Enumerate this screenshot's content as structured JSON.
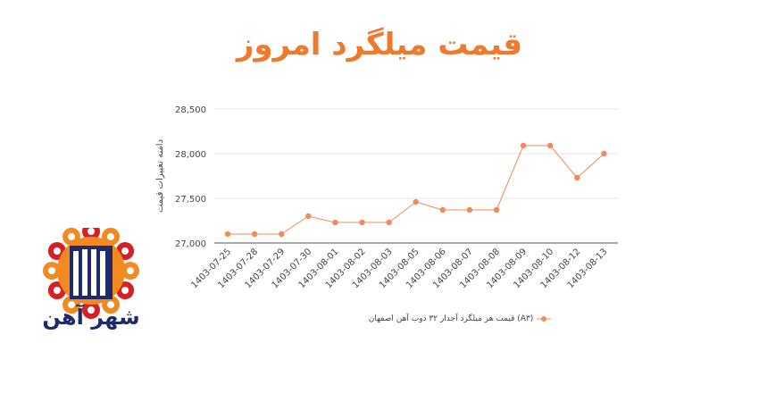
{
  "page": {
    "title": "قیمت میلگرد امروز"
  },
  "colors": {
    "accent": "#ee7a2e",
    "series": "#f08a5d",
    "grid": "#e6e6e6",
    "axis": "#555555",
    "text": "#444444",
    "logo_navy": "#1f2a6b",
    "logo_red": "#d62027",
    "logo_orange": "#f18a21"
  },
  "logo": {
    "icon": "shahr-ahan-logo",
    "text": "شهر آهن"
  },
  "chart_data": {
    "type": "line",
    "title": "",
    "xlabel": "",
    "ylabel": "دامنه تغییرات قیمت",
    "categories": [
      "1403-07-25",
      "1403-07-28",
      "1403-07-29",
      "1403-07-30",
      "1403-08-01",
      "1403-08-02",
      "1403-08-03",
      "1403-08-05",
      "1403-08-06",
      "1403-08-07",
      "1403-08-08",
      "1403-08-09",
      "1403-08-10",
      "1403-08-12",
      "1403-08-13"
    ],
    "series": [
      {
        "name": "(A۳) قیمت هر میلگرد آجدار ۳۲ ذوب آهن اصفهان",
        "values": [
          27100,
          27100,
          27100,
          27300,
          27230,
          27230,
          27230,
          27460,
          27370,
          27370,
          27370,
          28090,
          28090,
          27730,
          28000
        ]
      }
    ],
    "yticks": [
      27000,
      27500,
      28000,
      28500
    ],
    "ytick_labels": [
      "27,000",
      "27,500",
      "28,000",
      "28,500"
    ],
    "ylim": [
      27000,
      28500
    ],
    "grid": true,
    "legend": "bottom"
  }
}
